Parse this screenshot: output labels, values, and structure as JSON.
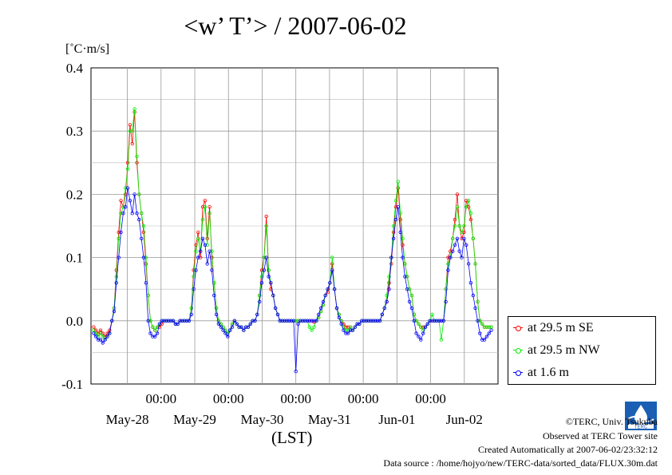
{
  "title": "<w’ T’> / 2007-06-02",
  "unit": "[˚C·m/s]",
  "xlabel": "(LST)",
  "footer": {
    "copyright": "©TERC, Univ. Tsukuba",
    "observed": "Observed at TERC Tower site",
    "created": "Created Automatically at 2007-06-02/23:32:12",
    "source": "Data source : /home/hojyo/new/TERC-data/sorted_data/FLUX.30m.dat"
  },
  "logo_text": "TERC",
  "chart_data": {
    "type": "line",
    "ylim": [
      -0.1,
      0.4
    ],
    "yticks": [
      "-0.1",
      "0.0",
      "0.1",
      "0.2",
      "0.3",
      "0.4"
    ],
    "xrange_days": [
      -0.04,
      6.0
    ],
    "time_tick_labels": [
      "00:00",
      "00:00",
      "00:00",
      "00:00",
      "00:00"
    ],
    "date_tick_labels": [
      "May-28",
      "May-29",
      "May-30",
      "May-31",
      "Jun-01",
      "Jun-02"
    ],
    "grid": true,
    "legend_position": "right",
    "series": [
      {
        "name": "at 29.5 m SE",
        "color": "#ff0000",
        "values": [
          -0.01,
          -0.015,
          -0.02,
          -0.015,
          -0.02,
          -0.025,
          -0.02,
          -0.015,
          0.0,
          0.02,
          0.08,
          0.14,
          0.19,
          0.18,
          0.2,
          0.25,
          0.31,
          0.28,
          0.33,
          0.25,
          0.2,
          0.17,
          0.14,
          0.09,
          0.04,
          0.0,
          -0.01,
          -0.015,
          -0.01,
          -0.01,
          -0.005,
          0.0,
          0.0,
          0.0,
          0.0,
          0.0,
          -0.005,
          -0.005,
          0.0,
          0.0,
          0.0,
          0.0,
          0.0,
          0.02,
          0.08,
          0.12,
          0.14,
          0.1,
          0.18,
          0.19,
          0.13,
          0.18,
          0.1,
          0.06,
          0.02,
          0.0,
          -0.005,
          -0.01,
          -0.015,
          -0.02,
          -0.015,
          -0.005,
          0.0,
          -0.005,
          -0.01,
          -0.01,
          -0.015,
          -0.01,
          -0.01,
          -0.005,
          0.0,
          0.0,
          0.01,
          0.04,
          0.08,
          0.1,
          0.165,
          0.08,
          0.05,
          0.04,
          0.02,
          0.01,
          0.0,
          0.0,
          0.0,
          0.0,
          0.0,
          0.0,
          0.0,
          0.0,
          0.0,
          0.0,
          0.0,
          0.0,
          0.0,
          0.0,
          0.0,
          -0.002,
          0.0,
          0.005,
          0.015,
          0.025,
          0.04,
          0.045,
          0.06,
          0.09,
          0.05,
          0.02,
          0.01,
          0.0,
          -0.005,
          -0.01,
          -0.01,
          -0.01,
          -0.015,
          -0.01,
          -0.005,
          -0.005,
          0.0,
          0.0,
          0.0,
          0.0,
          0.0,
          0.0,
          0.0,
          0.0,
          0.0,
          0.01,
          0.02,
          0.03,
          0.06,
          0.09,
          0.14,
          0.18,
          0.21,
          0.16,
          0.12,
          0.09,
          0.07,
          0.05,
          0.04,
          0.01,
          0.0,
          -0.005,
          -0.01,
          -0.01,
          -0.01,
          -0.005,
          0.0,
          0.0,
          0.0,
          0.0,
          0.0,
          0.0,
          0.0,
          0.05,
          0.1,
          0.11,
          0.13,
          0.16,
          0.2,
          0.15,
          0.13,
          0.14,
          0.19,
          0.18,
          0.16,
          0.13,
          0.09,
          0.03,
          0.0,
          -0.005,
          -0.01,
          -0.01,
          -0.01,
          -0.01
        ]
      },
      {
        "name": "at 29.5 m NW",
        "color": "#00ee00",
        "values": [
          -0.015,
          -0.02,
          -0.025,
          -0.02,
          -0.025,
          -0.03,
          -0.025,
          -0.02,
          0.0,
          0.02,
          0.07,
          0.13,
          0.17,
          0.18,
          0.21,
          0.24,
          0.3,
          0.3,
          0.335,
          0.26,
          0.2,
          0.17,
          0.15,
          0.1,
          0.04,
          0.0,
          -0.01,
          -0.015,
          -0.01,
          -0.005,
          0.0,
          0.0,
          0.0,
          0.0,
          0.0,
          0.0,
          -0.005,
          -0.005,
          0.0,
          0.0,
          0.0,
          0.0,
          0.0,
          0.02,
          0.07,
          0.11,
          0.13,
          0.11,
          0.16,
          0.18,
          0.12,
          0.17,
          0.11,
          0.06,
          0.02,
          0.0,
          -0.005,
          -0.01,
          -0.015,
          -0.02,
          -0.015,
          -0.005,
          0.0,
          -0.005,
          -0.01,
          -0.01,
          -0.015,
          -0.01,
          -0.01,
          -0.005,
          0.0,
          0.0,
          0.01,
          0.04,
          0.07,
          0.1,
          0.15,
          0.08,
          0.06,
          0.04,
          0.02,
          0.01,
          0.0,
          0.0,
          0.0,
          0.0,
          0.0,
          0.0,
          0.0,
          0.0,
          0.0,
          0.0,
          0.0,
          0.0,
          0.0,
          -0.01,
          -0.015,
          -0.01,
          0.0,
          0.005,
          0.015,
          0.025,
          0.04,
          0.05,
          0.06,
          0.1,
          0.05,
          0.02,
          0.01,
          0.0,
          -0.01,
          -0.015,
          -0.015,
          -0.01,
          -0.015,
          -0.01,
          -0.005,
          -0.005,
          0.0,
          0.0,
          0.0,
          0.0,
          0.0,
          0.0,
          0.0,
          0.0,
          0.0,
          0.01,
          0.02,
          0.04,
          0.07,
          0.1,
          0.15,
          0.19,
          0.22,
          0.17,
          0.13,
          0.09,
          0.07,
          0.05,
          0.04,
          0.01,
          0.0,
          -0.005,
          -0.01,
          -0.015,
          -0.01,
          -0.005,
          0.0,
          0.01,
          0.0,
          0.0,
          0.0,
          -0.03,
          0.0,
          0.05,
          0.09,
          0.1,
          0.13,
          0.15,
          0.18,
          0.15,
          0.14,
          0.15,
          0.18,
          0.19,
          0.17,
          0.13,
          0.09,
          0.03,
          0.0,
          -0.005,
          -0.01,
          -0.01,
          -0.01,
          -0.01
        ]
      },
      {
        "name": "at 1.6 m",
        "color": "#0000ff",
        "values": [
          -0.02,
          -0.025,
          -0.03,
          -0.03,
          -0.035,
          -0.03,
          -0.025,
          -0.02,
          0.0,
          0.015,
          0.06,
          0.1,
          0.14,
          0.17,
          0.18,
          0.21,
          0.19,
          0.17,
          0.2,
          0.17,
          0.16,
          0.13,
          0.1,
          0.06,
          0.0,
          -0.02,
          -0.025,
          -0.025,
          -0.02,
          -0.005,
          0.0,
          0.0,
          0.0,
          0.0,
          0.0,
          0.0,
          -0.005,
          -0.005,
          0.0,
          0.0,
          0.0,
          0.0,
          0.0,
          0.01,
          0.05,
          0.08,
          0.1,
          0.11,
          0.13,
          0.12,
          0.09,
          0.11,
          0.08,
          0.04,
          0.01,
          -0.005,
          -0.01,
          -0.015,
          -0.02,
          -0.025,
          -0.015,
          -0.01,
          0.0,
          -0.005,
          -0.01,
          -0.01,
          -0.015,
          -0.01,
          -0.01,
          -0.005,
          0.0,
          0.0,
          0.01,
          0.03,
          0.06,
          0.08,
          0.1,
          0.07,
          0.06,
          0.04,
          0.02,
          0.01,
          0.0,
          0.0,
          0.0,
          0.0,
          0.0,
          0.0,
          0.0,
          -0.08,
          -0.005,
          0.0,
          0.0,
          0.0,
          0.0,
          0.0,
          0.0,
          0.0,
          0.0,
          0.01,
          0.02,
          0.03,
          0.04,
          0.05,
          0.06,
          0.08,
          0.05,
          0.02,
          0.005,
          -0.005,
          -0.015,
          -0.02,
          -0.02,
          -0.015,
          -0.015,
          -0.01,
          -0.005,
          -0.005,
          0.0,
          0.0,
          0.0,
          0.0,
          0.0,
          0.0,
          0.0,
          0.0,
          0.0,
          0.01,
          0.02,
          0.03,
          0.05,
          0.1,
          0.13,
          0.16,
          0.18,
          0.14,
          0.1,
          0.07,
          0.05,
          0.03,
          0.02,
          0.0,
          -0.02,
          -0.025,
          -0.03,
          -0.02,
          -0.01,
          -0.005,
          0.0,
          0.0,
          0.0,
          0.0,
          0.0,
          0.0,
          0.0,
          0.03,
          0.08,
          0.1,
          0.11,
          0.12,
          0.13,
          0.11,
          0.1,
          0.13,
          0.12,
          0.09,
          0.06,
          0.04,
          0.02,
          0.0,
          -0.02,
          -0.03,
          -0.03,
          -0.025,
          -0.02,
          -0.015
        ]
      }
    ]
  }
}
